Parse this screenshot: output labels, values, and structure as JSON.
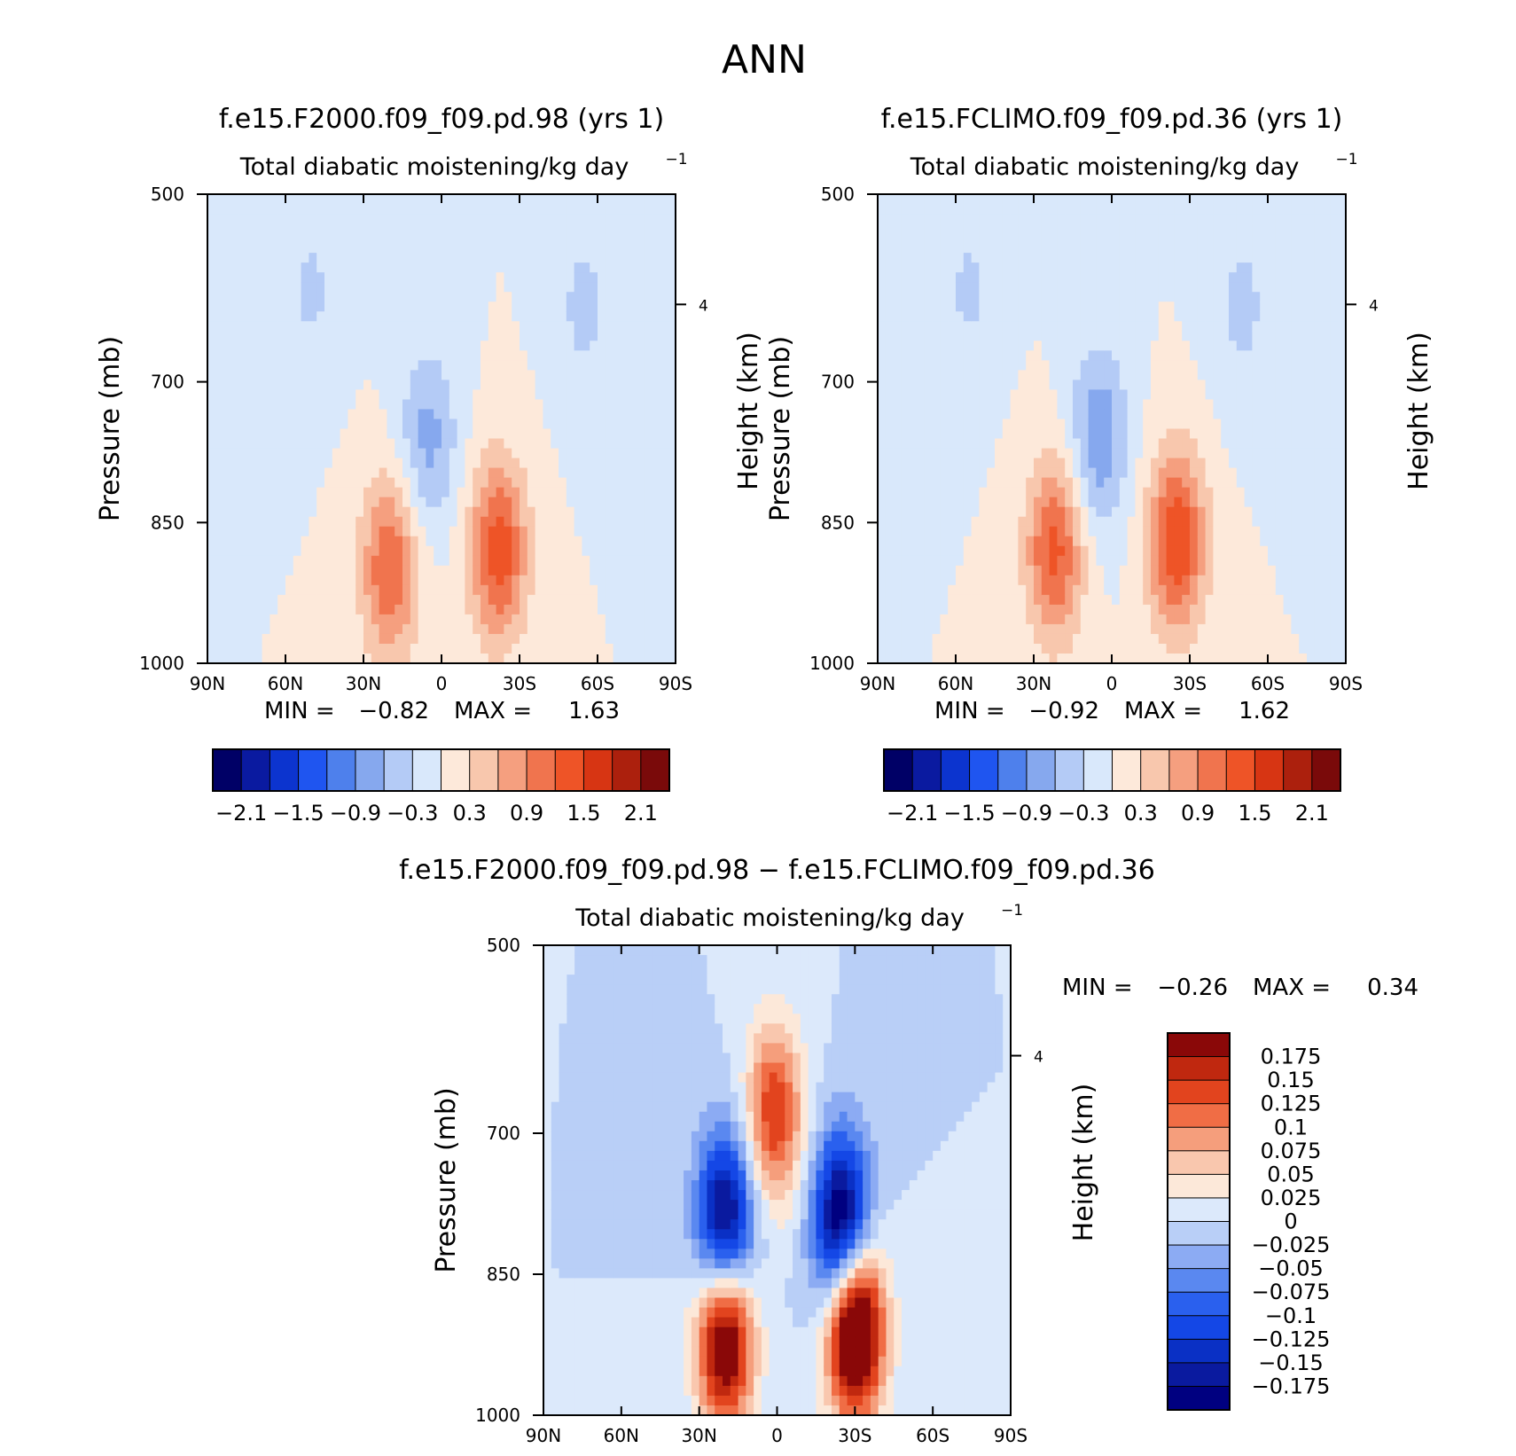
{
  "figure_title": "ANN",
  "colors": {
    "panel_levels": [
      "#000066",
      "#0a1aa0",
      "#0c34cf",
      "#1f55f0",
      "#4e80ec",
      "#86a8ee",
      "#b4cbf6",
      "#d9e8fb",
      "#fde9da",
      "#f8c7ad",
      "#f59f7f",
      "#f0744e",
      "#ee5427",
      "#d73513",
      "#ac200d",
      "#7a0a0a"
    ],
    "diff_levels": [
      "#000080",
      "#0a1a9f",
      "#0a30c5",
      "#1447e6",
      "#2a60ee",
      "#5a88f0",
      "#8cabf3",
      "#b9cff7",
      "#dce9fb",
      "#fce8d9",
      "#f9c7ae",
      "#f59e7c",
      "#f06d45",
      "#e2441e",
      "#c0280f",
      "#8a0808"
    ]
  },
  "chart_data": [
    {
      "type": "heatmap",
      "title": "f.e15.F2000.f09_f09.pd.98 (yrs 1)",
      "subtitle": "Total diabatic moistening/kg day",
      "subtitle_exponent": "−1",
      "xlabel": "",
      "ylabel": "Pressure (mb)",
      "ylabel_right": "Height (km)",
      "x_ticks": [
        "90N",
        "60N",
        "30N",
        "0",
        "30S",
        "60S",
        "90S"
      ],
      "y_ticks": [
        "500",
        "700",
        "850",
        "1000"
      ],
      "right_ticks": [
        "4"
      ],
      "xlim": [
        90,
        -90
      ],
      "ylim": [
        1000,
        500
      ],
      "min_label": "MIN =",
      "min_value": "−0.82",
      "max_label": "MAX =",
      "max_value": "1.63",
      "colorbar_labels": [
        "−2.1",
        "−1.5",
        "−0.9",
        "−0.3",
        "0.3",
        "0.9",
        "1.5",
        "2.1"
      ],
      "features": [
        {
          "lat": 20,
          "p": 900,
          "value": 1.2
        },
        {
          "lat": -22,
          "p": 880,
          "value": 1.4
        },
        {
          "lat": 5,
          "p": 760,
          "value": -0.7
        },
        {
          "lat": -55,
          "p": 620,
          "value": -0.4
        },
        {
          "lat": 50,
          "p": 600,
          "value": -0.35
        }
      ]
    },
    {
      "type": "heatmap",
      "title": "f.e15.FCLIMO.f09_f09.pd.36 (yrs 1)",
      "subtitle": "Total diabatic moistening/kg day",
      "subtitle_exponent": "−1",
      "xlabel": "",
      "ylabel": "Pressure (mb)",
      "ylabel_right": "Height (km)",
      "x_ticks": [
        "90N",
        "60N",
        "30N",
        "0",
        "30S",
        "60S",
        "90S"
      ],
      "y_ticks": [
        "500",
        "700",
        "850",
        "1000"
      ],
      "right_ticks": [
        "4"
      ],
      "xlim": [
        90,
        -90
      ],
      "ylim": [
        1000,
        500
      ],
      "min_label": "MIN =",
      "min_value": "−0.92",
      "max_label": "MAX =",
      "max_value": "1.62",
      "colorbar_labels": [
        "−2.1",
        "−1.5",
        "−0.9",
        "−0.3",
        "0.3",
        "0.9",
        "1.5",
        "2.1"
      ],
      "features": [
        {
          "lat": 22,
          "p": 880,
          "value": 1.3
        },
        {
          "lat": -25,
          "p": 870,
          "value": 1.5
        },
        {
          "lat": 5,
          "p": 760,
          "value": -0.85
        },
        {
          "lat": -50,
          "p": 620,
          "value": -0.4
        },
        {
          "lat": 55,
          "p": 600,
          "value": -0.35
        }
      ]
    },
    {
      "type": "heatmap",
      "title": "f.e15.F2000.f09_f09.pd.98 − f.e15.FCLIMO.f09_f09.pd.36",
      "subtitle": "Total diabatic moistening/kg day",
      "subtitle_exponent": "−1",
      "xlabel": "",
      "ylabel": "Pressure (mb)",
      "ylabel_right": "Height (km)",
      "x_ticks": [
        "90N",
        "60N",
        "30N",
        "0",
        "30S",
        "60S",
        "90S"
      ],
      "y_ticks": [
        "500",
        "700",
        "850",
        "1000"
      ],
      "right_ticks": [
        "4"
      ],
      "xlim": [
        90,
        -90
      ],
      "ylim": [
        1000,
        500
      ],
      "min_label": "MIN =",
      "min_value": "−0.26",
      "max_label": "MAX =",
      "max_value": "0.34",
      "colorbar_labels": [
        "0.175",
        "0.15",
        "0.125",
        "0.1",
        "0.075",
        "0.05",
        "0.025",
        "0",
        "−0.025",
        "−0.05",
        "−0.075",
        "−0.1",
        "−0.125",
        "−0.15",
        "−0.175"
      ],
      "features": [
        {
          "lat": 20,
          "p": 800,
          "value": -0.22
        },
        {
          "lat": -25,
          "p": 800,
          "value": -0.24
        },
        {
          "lat": 20,
          "p": 915,
          "value": 0.25
        },
        {
          "lat": -30,
          "p": 905,
          "value": 0.3
        },
        {
          "lat": 1,
          "p": 680,
          "value": 0.15
        }
      ]
    }
  ]
}
